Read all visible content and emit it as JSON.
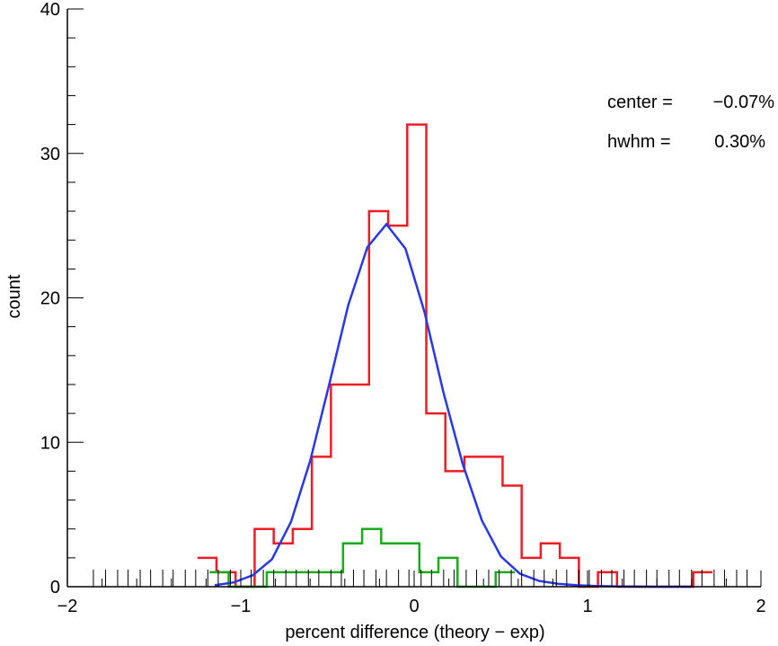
{
  "chart_data": {
    "type": "histogram",
    "xlabel": "percent difference (theory − exp)",
    "ylabel": "count",
    "xlim": [
      -2,
      2
    ],
    "ylim": [
      0,
      40
    ],
    "x_ticks": [
      -2,
      -1,
      0,
      1,
      2
    ],
    "x_tick_labels": [
      "−2",
      "−1",
      "0",
      "1",
      "2"
    ],
    "y_ticks": [
      0,
      10,
      20,
      30,
      40
    ],
    "y_tick_labels": [
      "0",
      "10",
      "20",
      "30",
      "40"
    ],
    "rug_x": [
      -1.85,
      -1.78,
      -1.71,
      -1.65,
      -1.58,
      -1.52,
      -1.45,
      -1.39,
      -1.32,
      -1.26,
      -1.19,
      -1.13,
      -1.06,
      -1.0,
      -0.94,
      -0.87,
      -0.81,
      -0.74,
      -0.68,
      -0.61,
      -0.55,
      -0.48,
      -0.42,
      -0.35,
      -0.29,
      -0.22,
      -0.16,
      -0.09,
      -0.03,
      0.04,
      0.1,
      0.17,
      0.23,
      0.3,
      0.36,
      0.43,
      0.49,
      0.56,
      0.62,
      0.69,
      0.75,
      0.82,
      0.88,
      0.95,
      1.01,
      1.08,
      1.14,
      1.21,
      1.27,
      1.34,
      1.4,
      1.47,
      1.53,
      1.6,
      1.66,
      1.73,
      1.79,
      1.86,
      1.92
    ],
    "annotations": [
      {
        "label": "center =",
        "value": "−0.07%"
      },
      {
        "label": "hwhm =",
        "value": "0.30%"
      }
    ],
    "series": [
      {
        "color": "#ee1c24",
        "style": "step",
        "bin_edges": [
          -1.25,
          -1.14,
          -1.03,
          -0.92,
          -0.81,
          -0.7,
          -0.59,
          -0.48,
          -0.37,
          -0.26,
          -0.15,
          -0.04,
          0.07,
          0.18,
          0.29,
          0.4,
          0.51,
          0.62,
          0.73,
          0.84,
          0.95,
          1.06,
          1.17,
          1.28,
          1.39,
          1.5,
          1.61,
          1.72
        ],
        "counts": [
          2,
          1,
          0,
          4,
          3,
          4,
          9,
          14,
          14,
          26,
          25,
          32,
          12,
          8,
          9,
          9,
          7,
          2,
          3,
          2,
          0,
          1,
          0,
          0,
          0,
          0,
          1
        ]
      },
      {
        "color": "#1aaa1a",
        "style": "step",
        "bin_edges": [
          -1.18,
          -1.07,
          -0.96,
          -0.85,
          -0.74,
          -0.63,
          -0.52,
          -0.41,
          -0.3,
          -0.19,
          -0.08,
          0.03,
          0.14,
          0.25,
          0.36,
          0.47,
          0.58
        ],
        "counts": [
          1,
          0,
          0,
          1,
          1,
          1,
          1,
          3,
          4,
          3,
          3,
          1,
          2,
          0,
          0,
          1
        ]
      },
      {
        "color": "#2838e8",
        "style": "line",
        "x": [
          -1.15,
          -1.04,
          -0.93,
          -0.82,
          -0.71,
          -0.6,
          -0.49,
          -0.38,
          -0.27,
          -0.16,
          -0.05,
          0.06,
          0.17,
          0.28,
          0.39,
          0.5,
          0.61,
          0.72,
          0.83,
          0.94,
          1.05,
          1.16,
          1.27,
          1.38,
          1.49,
          1.6
        ],
        "y": [
          0.1,
          0.3,
          0.8,
          1.9,
          4.5,
          8.7,
          14.0,
          19.5,
          23.5,
          25.1,
          23.4,
          19.0,
          13.4,
          8.5,
          4.6,
          2.1,
          0.9,
          0.4,
          0.2,
          0.1,
          0.05,
          0.02,
          0.01,
          0,
          0,
          0
        ]
      }
    ]
  }
}
